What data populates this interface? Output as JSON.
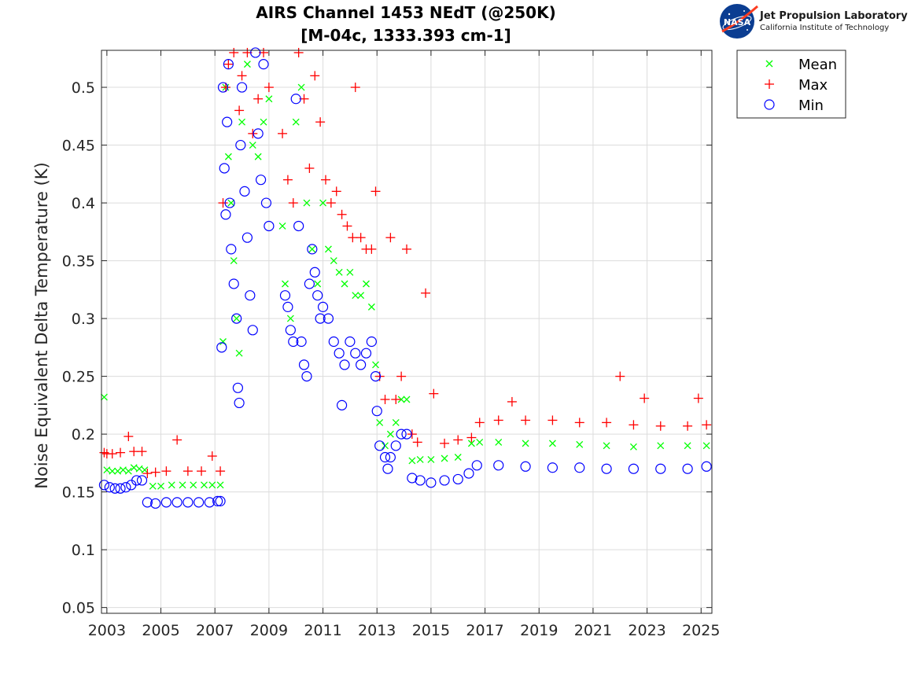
{
  "logo": {
    "name": "Jet Propulsion Laboratory",
    "subtitle": "California Institute of Technology",
    "badge_text": "NASA",
    "badge_icon": "nasa-meatball-icon"
  },
  "chart_data": {
    "type": "scatter",
    "title": "AIRS Channel 1453 NEdT (@250K)",
    "subtitle": "[M-04c, 1333.393 cm-1]",
    "xlabel": "",
    "ylabel": "Noise Equivalent Delta Temperature (K)",
    "xlim": [
      2002.8,
      2025.4
    ],
    "ylim": [
      0.045,
      0.532
    ],
    "xticks": [
      "2003",
      "2005",
      "2007",
      "2009",
      "2011",
      "2013",
      "2015",
      "2017",
      "2019",
      "2021",
      "2023",
      "2025"
    ],
    "yticks": [
      "0.05",
      "0.1",
      "0.15",
      "0.2",
      "0.25",
      "0.3",
      "0.35",
      "0.4",
      "0.45",
      "0.5"
    ],
    "grid": true,
    "legend": {
      "position": "outside-top-right"
    },
    "series": [
      {
        "name": "Mean",
        "marker": "x",
        "color": "#00ff00",
        "x": [
          2002.9,
          2003.0,
          2003.2,
          2003.4,
          2003.6,
          2003.8,
          2004.0,
          2004.2,
          2004.4,
          2004.7,
          2005.0,
          2005.4,
          2005.8,
          2006.2,
          2006.6,
          2006.9,
          2007.2,
          2007.3,
          2007.4,
          2007.5,
          2007.6,
          2007.7,
          2007.8,
          2007.9,
          2008.0,
          2008.2,
          2008.4,
          2008.6,
          2008.8,
          2009.0,
          2009.5,
          2009.6,
          2009.8,
          2010.0,
          2010.2,
          2010.4,
          2010.6,
          2010.8,
          2011.0,
          2011.2,
          2011.4,
          2011.6,
          2011.8,
          2012.0,
          2012.2,
          2012.4,
          2012.6,
          2012.8,
          2012.95,
          2013.1,
          2013.3,
          2013.5,
          2013.7,
          2013.9,
          2014.1,
          2014.3,
          2014.6,
          2015.0,
          2015.5,
          2016.0,
          2016.5,
          2016.8,
          2017.5,
          2018.5,
          2019.5,
          2020.5,
          2021.5,
          2022.5,
          2023.5,
          2024.5,
          2025.2
        ],
        "y": [
          0.232,
          0.169,
          0.168,
          0.168,
          0.169,
          0.168,
          0.171,
          0.17,
          0.169,
          0.155,
          0.155,
          0.156,
          0.156,
          0.156,
          0.156,
          0.156,
          0.156,
          0.28,
          0.5,
          0.44,
          0.4,
          0.35,
          0.3,
          0.27,
          0.47,
          0.52,
          0.45,
          0.44,
          0.47,
          0.49,
          0.38,
          0.33,
          0.3,
          0.47,
          0.5,
          0.4,
          0.36,
          0.33,
          0.4,
          0.36,
          0.35,
          0.34,
          0.33,
          0.34,
          0.32,
          0.32,
          0.33,
          0.31,
          0.26,
          0.21,
          0.19,
          0.2,
          0.21,
          0.23,
          0.23,
          0.177,
          0.178,
          0.178,
          0.179,
          0.18,
          0.192,
          0.193,
          0.193,
          0.192,
          0.192,
          0.191,
          0.19,
          0.189,
          0.19,
          0.19,
          0.19
        ]
      },
      {
        "name": "Max",
        "marker": "+",
        "color": "#ff0000",
        "x": [
          2002.9,
          2003.0,
          2003.2,
          2003.5,
          2003.8,
          2004.0,
          2004.3,
          2004.5,
          2004.8,
          2005.2,
          2005.6,
          2006.0,
          2006.5,
          2006.9,
          2007.2,
          2007.3,
          2007.4,
          2007.5,
          2007.7,
          2007.9,
          2008.0,
          2008.2,
          2008.4,
          2008.6,
          2008.8,
          2009.0,
          2009.5,
          2009.7,
          2009.9,
          2010.1,
          2010.3,
          2010.5,
          2010.7,
          2010.9,
          2011.1,
          2011.3,
          2011.5,
          2011.7,
          2011.9,
          2012.1,
          2012.2,
          2012.4,
          2012.6,
          2012.8,
          2012.95,
          2013.1,
          2013.3,
          2013.5,
          2013.7,
          2013.9,
          2014.1,
          2014.3,
          2014.5,
          2014.8,
          2015.1,
          2015.5,
          2016.0,
          2016.5,
          2016.8,
          2017.5,
          2018.0,
          2018.5,
          2019.5,
          2020.5,
          2021.5,
          2022.0,
          2022.5,
          2022.9,
          2023.5,
          2024.5,
          2024.9,
          2025.2
        ],
        "y": [
          0.184,
          0.183,
          0.183,
          0.184,
          0.198,
          0.185,
          0.185,
          0.166,
          0.167,
          0.168,
          0.195,
          0.168,
          0.168,
          0.181,
          0.168,
          0.4,
          0.5,
          0.52,
          0.53,
          0.48,
          0.51,
          0.53,
          0.46,
          0.49,
          0.53,
          0.5,
          0.46,
          0.42,
          0.4,
          0.53,
          0.49,
          0.43,
          0.51,
          0.47,
          0.42,
          0.4,
          0.41,
          0.39,
          0.38,
          0.37,
          0.5,
          0.37,
          0.36,
          0.36,
          0.41,
          0.25,
          0.23,
          0.37,
          0.23,
          0.25,
          0.36,
          0.2,
          0.193,
          0.322,
          0.235,
          0.192,
          0.195,
          0.197,
          0.21,
          0.212,
          0.228,
          0.212,
          0.212,
          0.21,
          0.21,
          0.25,
          0.208,
          0.231,
          0.207,
          0.207,
          0.231,
          0.208
        ]
      },
      {
        "name": "Min",
        "marker": "o",
        "color": "#0000ff",
        "x": [
          2002.9,
          2003.1,
          2003.3,
          2003.5,
          2003.7,
          2003.9,
          2004.1,
          2004.3,
          2004.5,
          2004.8,
          2005.2,
          2005.6,
          2006.0,
          2006.4,
          2006.8,
          2007.1,
          2007.2,
          2007.25,
          2007.3,
          2007.35,
          2007.4,
          2007.45,
          2007.5,
          2007.55,
          2007.6,
          2007.7,
          2007.8,
          2007.85,
          2007.9,
          2007.95,
          2008.0,
          2008.1,
          2008.2,
          2008.3,
          2008.4,
          2008.5,
          2008.6,
          2008.7,
          2008.8,
          2008.9,
          2009.0,
          2009.6,
          2009.7,
          2009.8,
          2009.9,
          2010.0,
          2010.1,
          2010.2,
          2010.3,
          2010.4,
          2010.5,
          2010.6,
          2010.7,
          2010.8,
          2010.9,
          2011.0,
          2011.2,
          2011.4,
          2011.6,
          2011.7,
          2011.8,
          2012.0,
          2012.2,
          2012.4,
          2012.6,
          2012.8,
          2012.95,
          2013.0,
          2013.1,
          2013.3,
          2013.4,
          2013.5,
          2013.7,
          2013.9,
          2014.1,
          2014.3,
          2014.6,
          2015.0,
          2015.5,
          2016.0,
          2016.4,
          2016.7,
          2017.5,
          2018.5,
          2019.5,
          2020.5,
          2021.5,
          2022.5,
          2023.5,
          2024.5,
          2025.2
        ],
        "y": [
          0.156,
          0.154,
          0.153,
          0.153,
          0.154,
          0.156,
          0.16,
          0.16,
          0.141,
          0.14,
          0.141,
          0.141,
          0.141,
          0.141,
          0.141,
          0.142,
          0.142,
          0.275,
          0.5,
          0.43,
          0.39,
          0.47,
          0.52,
          0.4,
          0.36,
          0.33,
          0.3,
          0.24,
          0.227,
          0.45,
          0.5,
          0.41,
          0.37,
          0.32,
          0.29,
          0.53,
          0.46,
          0.42,
          0.52,
          0.4,
          0.38,
          0.32,
          0.31,
          0.29,
          0.28,
          0.49,
          0.38,
          0.28,
          0.26,
          0.25,
          0.33,
          0.36,
          0.34,
          0.32,
          0.3,
          0.31,
          0.3,
          0.28,
          0.27,
          0.225,
          0.26,
          0.28,
          0.27,
          0.26,
          0.27,
          0.28,
          0.25,
          0.22,
          0.19,
          0.18,
          0.17,
          0.18,
          0.19,
          0.2,
          0.2,
          0.162,
          0.16,
          0.158,
          0.16,
          0.161,
          0.166,
          0.173,
          0.173,
          0.172,
          0.171,
          0.171,
          0.17,
          0.17,
          0.17,
          0.17,
          0.172
        ]
      }
    ]
  }
}
